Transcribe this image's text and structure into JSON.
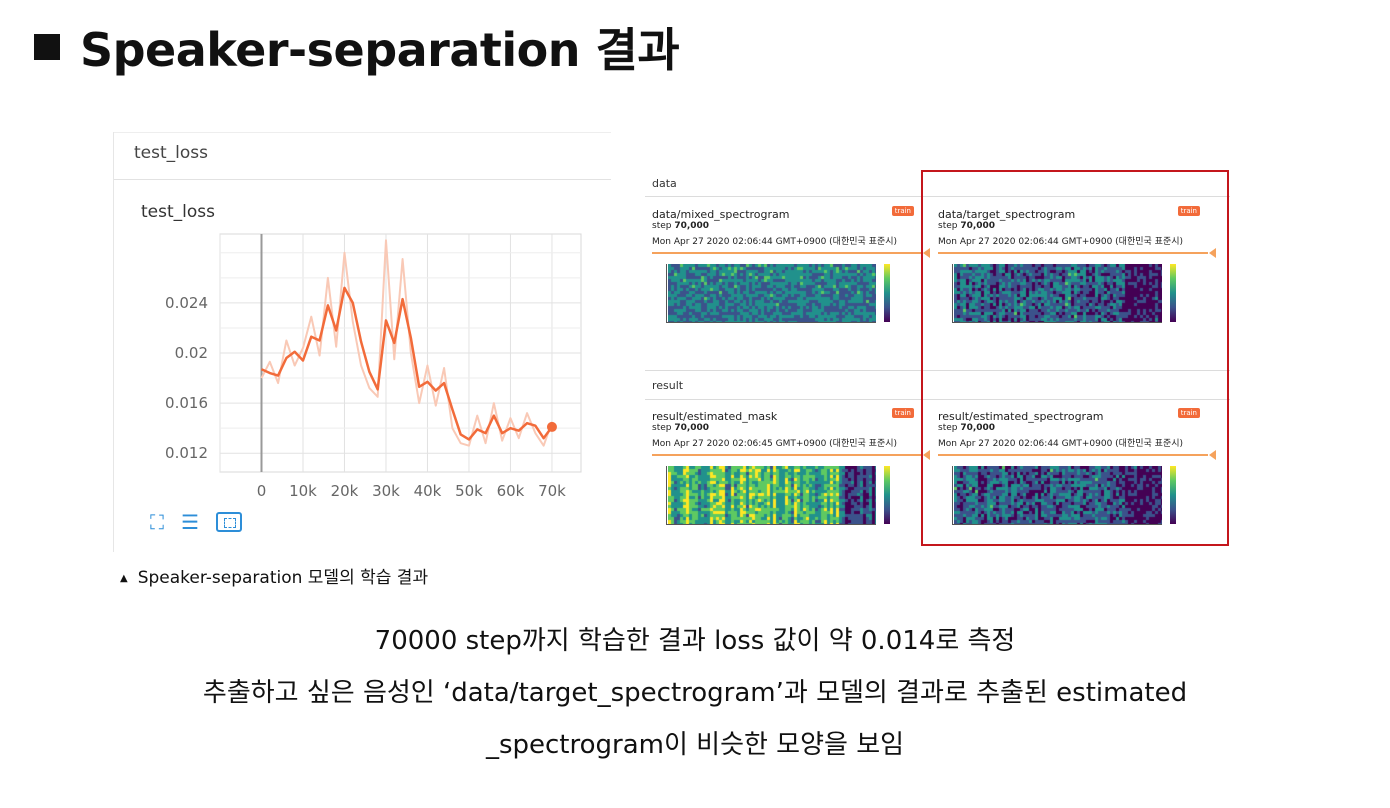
{
  "title": "Speaker-separation 결과",
  "tb": {
    "header": "test_loss",
    "card_title": "test_loss"
  },
  "chart_data": {
    "type": "line",
    "ylim": [
      0.0105,
      0.0295
    ],
    "xlim": [
      -10000,
      77000
    ],
    "yticks": [
      0.012,
      0.016,
      0.02,
      0.024
    ],
    "ytick_labels": [
      "0.012",
      "0.016",
      "0.02",
      "0.024"
    ],
    "xticks": [
      0,
      10000,
      20000,
      30000,
      40000,
      50000,
      60000,
      70000
    ],
    "xtick_labels": [
      "0",
      "10k",
      "20k",
      "30k",
      "40k",
      "50k",
      "60k",
      "70k"
    ],
    "grid": true,
    "series": [
      {
        "color": "#f26b3a",
        "smoothed": true,
        "x": [
          0,
          2000,
          4000,
          6000,
          8000,
          10000,
          12000,
          14000,
          16000,
          18000,
          20000,
          22000,
          24000,
          26000,
          28000,
          30000,
          32000,
          34000,
          36000,
          38000,
          40000,
          42000,
          44000,
          46000,
          48000,
          50000,
          52000,
          54000,
          56000,
          58000,
          60000,
          62000,
          64000,
          66000,
          68000,
          70000
        ],
        "y": [
          0.0187,
          0.0184,
          0.0182,
          0.0196,
          0.0201,
          0.0194,
          0.0213,
          0.021,
          0.0238,
          0.0218,
          0.0252,
          0.024,
          0.0209,
          0.0185,
          0.0171,
          0.0226,
          0.0208,
          0.0243,
          0.0212,
          0.0173,
          0.0177,
          0.017,
          0.0176,
          0.0155,
          0.0135,
          0.0131,
          0.0139,
          0.0136,
          0.015,
          0.0136,
          0.014,
          0.0138,
          0.0144,
          0.0142,
          0.0132,
          0.0141
        ]
      },
      {
        "color": "#f9c9b6",
        "smoothed": false,
        "x": [
          0,
          2000,
          4000,
          6000,
          8000,
          10000,
          12000,
          14000,
          16000,
          18000,
          20000,
          22000,
          24000,
          26000,
          28000,
          30000,
          32000,
          34000,
          36000,
          38000,
          40000,
          42000,
          44000,
          46000,
          48000,
          50000,
          52000,
          54000,
          56000,
          58000,
          60000,
          62000,
          64000,
          66000,
          68000,
          70000
        ],
        "y": [
          0.018,
          0.0193,
          0.0176,
          0.021,
          0.019,
          0.0204,
          0.0229,
          0.0198,
          0.026,
          0.0205,
          0.028,
          0.0225,
          0.019,
          0.0172,
          0.0165,
          0.029,
          0.0195,
          0.0275,
          0.02,
          0.016,
          0.019,
          0.0158,
          0.0188,
          0.014,
          0.0128,
          0.0126,
          0.015,
          0.0128,
          0.016,
          0.013,
          0.0148,
          0.0132,
          0.0152,
          0.0136,
          0.0126,
          0.0145
        ]
      }
    ]
  },
  "caption": "Speaker-separation 모델의 학습 결과",
  "images": {
    "data_label": "data",
    "result_label": "result",
    "cards": [
      {
        "name": "data/mixed_spectrogram",
        "step_prefix": "step ",
        "step": "70,000",
        "time": "Mon Apr 27 2020 02:06:44 GMT+0900 (대한민국 표준시)",
        "badge": "train",
        "tone": "mixed"
      },
      {
        "name": "data/target_spectrogram",
        "step_prefix": "step ",
        "step": "70,000",
        "time": "Mon Apr 27 2020 02:06:44 GMT+0900 (대한민국 표준시)",
        "badge": "train",
        "tone": "target"
      },
      {
        "name": "result/estimated_mask",
        "step_prefix": "step ",
        "step": "70,000",
        "time": "Mon Apr 27 2020 02:06:45 GMT+0900 (대한민국 표준시)",
        "badge": "train",
        "tone": "mask"
      },
      {
        "name": "result/estimated_spectrogram",
        "step_prefix": "step ",
        "step": "70,000",
        "time": "Mon Apr 27 2020 02:06:44 GMT+0900 (대한민국 표준시)",
        "badge": "train",
        "tone": "target"
      }
    ]
  },
  "body": {
    "line1": "70000 step까지 학습한 결과 loss 값이 약 0.014로 측정",
    "line2": "추출하고 싶은 음성인 ‘data/target_spectrogram’과 모델의 결과로 추출된 estimated",
    "line3": "_spectrogram이 비슷한 모양을 보임"
  },
  "colors": {
    "accent": "#f26b3a",
    "highlight_box": "#c4161c",
    "tb_icon": "#2d8ed8"
  },
  "icons": [
    "expand-icon",
    "list-icon",
    "fit-domain-icon"
  ]
}
